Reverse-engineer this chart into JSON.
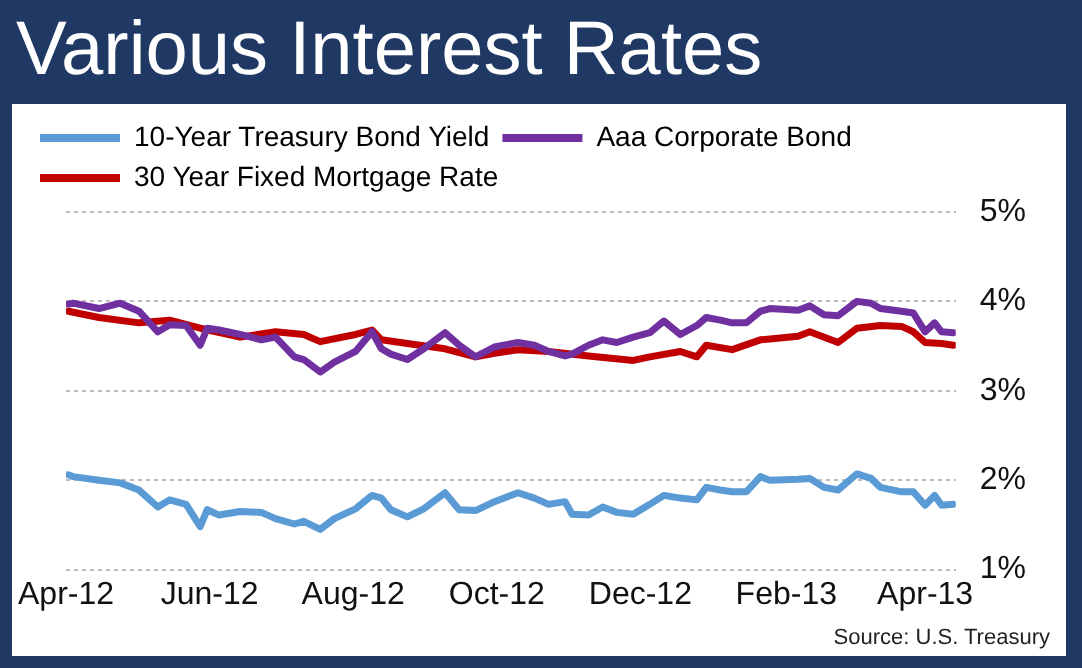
{
  "chart_data": {
    "type": "line",
    "title": "Various Interest Rates",
    "legend": "top left",
    "grid": "y",
    "xlim": [
      "2012-04-01",
      "2013-04-14"
    ],
    "xticks": [
      {
        "value": "2012-04-01",
        "label": "Apr-12"
      },
      {
        "value": "2012-06-01",
        "label": "Jun-12"
      },
      {
        "value": "2012-08-01",
        "label": "Aug-12"
      },
      {
        "value": "2012-10-01",
        "label": "Oct-12"
      },
      {
        "value": "2012-12-01",
        "label": "Dec-12"
      },
      {
        "value": "2013-02-01",
        "label": "Feb-13"
      },
      {
        "value": "2013-04-01",
        "label": "Apr-13"
      }
    ],
    "ylim": [
      1,
      5
    ],
    "yticks": [
      {
        "value": 1,
        "label": "1%"
      },
      {
        "value": 2,
        "label": "2%"
      },
      {
        "value": 3,
        "label": "3%"
      },
      {
        "value": 4,
        "label": "4%"
      },
      {
        "value": 5,
        "label": "5%"
      }
    ],
    "annotations": [
      "Source:  U.S. Treasury"
    ],
    "series": [
      {
        "name": "10-Year Treasury Bond Yield",
        "color": "#5b9bd5",
        "x": [
          "2012-04-02",
          "2012-04-04",
          "2012-04-15",
          "2012-04-24",
          "2012-05-02",
          "2012-05-10",
          "2012-05-15",
          "2012-05-22",
          "2012-05-28",
          "2012-05-31",
          "2012-06-05",
          "2012-06-14",
          "2012-06-23",
          "2012-06-29",
          "2012-07-07",
          "2012-07-11",
          "2012-07-18",
          "2012-07-24",
          "2012-08-02",
          "2012-08-09",
          "2012-08-13",
          "2012-08-17",
          "2012-08-24",
          "2012-08-31",
          "2012-09-09",
          "2012-09-15",
          "2012-09-22",
          "2012-09-30",
          "2012-10-10",
          "2012-10-17",
          "2012-10-23",
          "2012-10-30",
          "2012-11-02",
          "2012-11-09",
          "2012-11-15",
          "2012-11-21",
          "2012-11-28",
          "2012-12-05",
          "2012-12-11",
          "2012-12-18",
          "2012-12-25",
          "2012-12-29",
          "2013-01-04",
          "2013-01-09",
          "2013-01-15",
          "2013-01-21",
          "2013-01-25",
          "2013-02-06",
          "2013-02-11",
          "2013-02-17",
          "2013-02-23",
          "2013-03-03",
          "2013-03-09",
          "2013-03-13",
          "2013-03-22",
          "2013-03-27",
          "2013-04-01",
          "2013-04-05",
          "2013-04-08",
          "2013-04-13"
        ],
        "values": [
          2.06,
          2.04,
          2.0,
          1.97,
          1.89,
          1.7,
          1.78,
          1.73,
          1.48,
          1.67,
          1.61,
          1.65,
          1.64,
          1.57,
          1.51,
          1.54,
          1.45,
          1.57,
          1.68,
          1.83,
          1.8,
          1.67,
          1.59,
          1.68,
          1.86,
          1.67,
          1.66,
          1.76,
          1.86,
          1.8,
          1.73,
          1.76,
          1.62,
          1.61,
          1.7,
          1.64,
          1.62,
          1.73,
          1.83,
          1.8,
          1.78,
          1.92,
          1.89,
          1.87,
          1.87,
          2.04,
          2.0,
          2.01,
          2.02,
          1.92,
          1.89,
          2.07,
          2.02,
          1.92,
          1.87,
          1.87,
          1.72,
          1.83,
          1.72,
          1.73
        ]
      },
      {
        "name": "Aaa Corporate Bond",
        "color": "#7030a0",
        "x": [
          "2012-04-02",
          "2012-04-04",
          "2012-04-15",
          "2012-04-24",
          "2012-05-02",
          "2012-05-10",
          "2012-05-15",
          "2012-05-22",
          "2012-05-28",
          "2012-05-31",
          "2012-06-05",
          "2012-06-14",
          "2012-06-23",
          "2012-06-29",
          "2012-07-07",
          "2012-07-11",
          "2012-07-18",
          "2012-07-24",
          "2012-08-02",
          "2012-08-09",
          "2012-08-13",
          "2012-08-17",
          "2012-08-24",
          "2012-08-31",
          "2012-09-09",
          "2012-09-15",
          "2012-09-22",
          "2012-09-30",
          "2012-10-10",
          "2012-10-17",
          "2012-10-23",
          "2012-10-30",
          "2012-11-02",
          "2012-11-09",
          "2012-11-15",
          "2012-11-21",
          "2012-11-28",
          "2012-12-05",
          "2012-12-11",
          "2012-12-18",
          "2012-12-25",
          "2012-12-29",
          "2013-01-04",
          "2013-01-09",
          "2013-01-15",
          "2013-01-21",
          "2013-01-25",
          "2013-02-06",
          "2013-02-11",
          "2013-02-17",
          "2013-02-23",
          "2013-03-03",
          "2013-03-09",
          "2013-03-13",
          "2013-03-22",
          "2013-03-27",
          "2013-04-01",
          "2013-04-05",
          "2013-04-08",
          "2013-04-13"
        ],
        "values": [
          3.97,
          3.98,
          3.92,
          3.98,
          3.89,
          3.66,
          3.74,
          3.73,
          3.51,
          3.7,
          3.68,
          3.63,
          3.57,
          3.6,
          3.38,
          3.35,
          3.21,
          3.32,
          3.44,
          3.66,
          3.47,
          3.41,
          3.35,
          3.47,
          3.65,
          3.51,
          3.38,
          3.49,
          3.54,
          3.51,
          3.44,
          3.39,
          3.41,
          3.51,
          3.57,
          3.54,
          3.6,
          3.65,
          3.78,
          3.63,
          3.73,
          3.82,
          3.79,
          3.76,
          3.76,
          3.89,
          3.92,
          3.9,
          3.95,
          3.85,
          3.84,
          4.0,
          3.98,
          3.92,
          3.89,
          3.87,
          3.66,
          3.76,
          3.66,
          3.65
        ]
      },
      {
        "name": "30 Year Fixed Mortgage Rate",
        "color": "#c00000",
        "x": [
          "2012-04-02",
          "2012-04-15",
          "2012-05-02",
          "2012-05-15",
          "2012-05-28",
          "2012-06-14",
          "2012-06-29",
          "2012-07-11",
          "2012-07-18",
          "2012-08-02",
          "2012-08-09",
          "2012-08-13",
          "2012-08-24",
          "2012-09-09",
          "2012-09-22",
          "2012-09-30",
          "2012-10-10",
          "2012-10-23",
          "2012-11-09",
          "2012-11-28",
          "2012-12-05",
          "2012-12-18",
          "2012-12-25",
          "2012-12-29",
          "2013-01-09",
          "2013-01-21",
          "2013-02-06",
          "2013-02-11",
          "2013-02-23",
          "2013-03-03",
          "2013-03-13",
          "2013-03-22",
          "2013-03-27",
          "2013-04-01",
          "2013-04-08",
          "2013-04-13"
        ],
        "values": [
          3.89,
          3.82,
          3.76,
          3.79,
          3.7,
          3.6,
          3.66,
          3.63,
          3.55,
          3.63,
          3.68,
          3.57,
          3.53,
          3.47,
          3.38,
          3.42,
          3.46,
          3.44,
          3.39,
          3.34,
          3.38,
          3.44,
          3.38,
          3.51,
          3.46,
          3.57,
          3.61,
          3.66,
          3.54,
          3.7,
          3.73,
          3.72,
          3.66,
          3.54,
          3.53,
          3.51
        ]
      }
    ]
  }
}
